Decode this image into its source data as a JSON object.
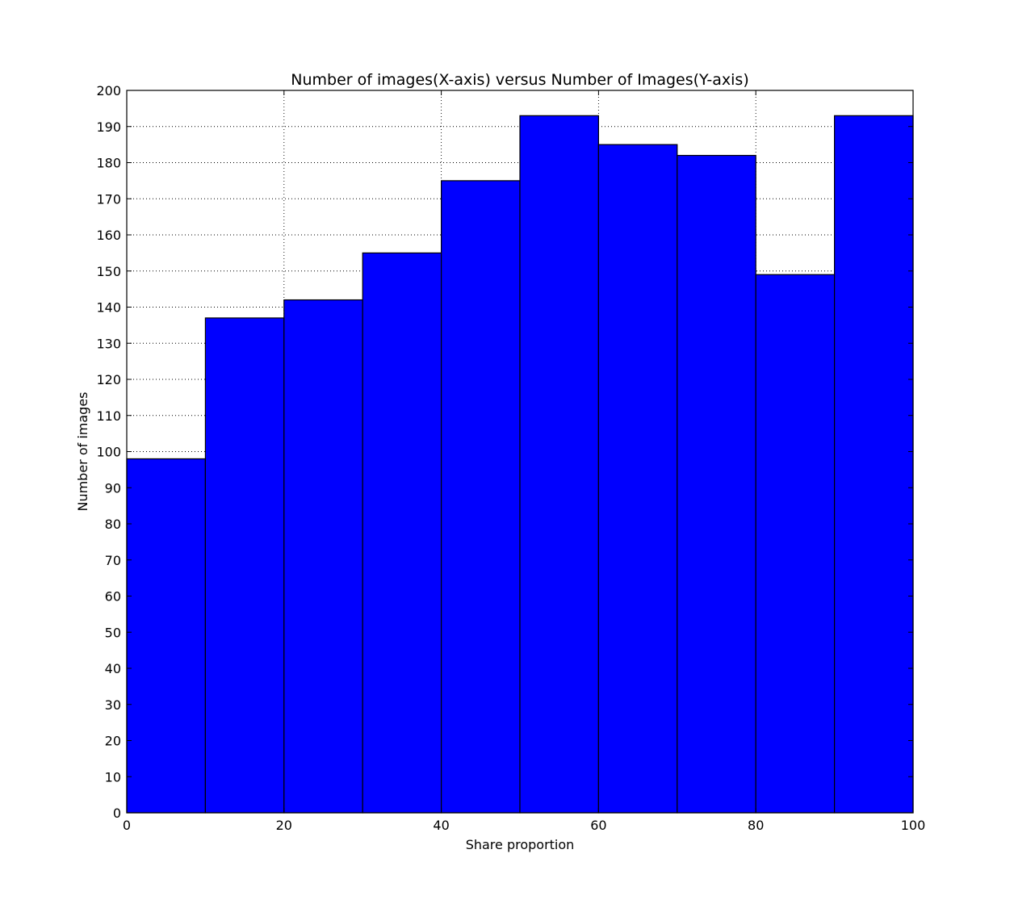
{
  "chart_data": {
    "type": "bar",
    "subtype": "histogram",
    "title": "Number of images(X-axis) versus Number of Images(Y-axis)",
    "xlabel": "Share proportion",
    "ylabel": "Number of images",
    "bins": [
      {
        "x0": 0,
        "x1": 10,
        "value": 98
      },
      {
        "x0": 10,
        "x1": 20,
        "value": 137
      },
      {
        "x0": 20,
        "x1": 30,
        "value": 142
      },
      {
        "x0": 30,
        "x1": 40,
        "value": 155
      },
      {
        "x0": 40,
        "x1": 50,
        "value": 175
      },
      {
        "x0": 50,
        "x1": 60,
        "value": 193
      },
      {
        "x0": 60,
        "x1": 70,
        "value": 185
      },
      {
        "x0": 70,
        "x1": 80,
        "value": 182
      },
      {
        "x0": 80,
        "x1": 90,
        "value": 149
      },
      {
        "x0": 90,
        "x1": 100,
        "value": 193
      }
    ],
    "xlim": [
      0,
      100
    ],
    "ylim": [
      0,
      200
    ],
    "xticks": [
      0,
      20,
      40,
      60,
      80,
      100
    ],
    "yticks": [
      0,
      10,
      20,
      30,
      40,
      50,
      60,
      70,
      80,
      90,
      100,
      110,
      120,
      130,
      140,
      150,
      160,
      170,
      180,
      190,
      200
    ],
    "grid": true,
    "bar_color": "#0000ff",
    "edge_color": "#000000"
  }
}
